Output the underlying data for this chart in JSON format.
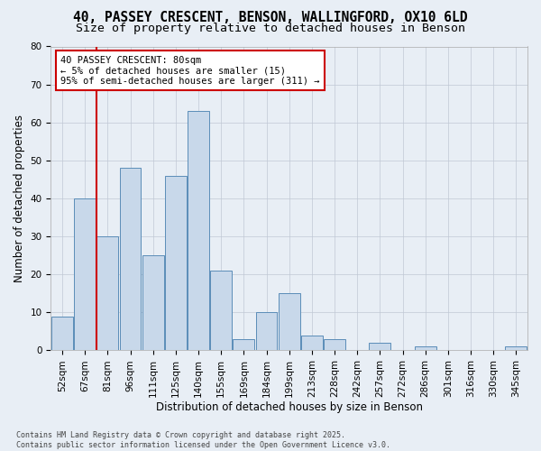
{
  "title1": "40, PASSEY CRESCENT, BENSON, WALLINGFORD, OX10 6LD",
  "title2": "Size of property relative to detached houses in Benson",
  "xlabel": "Distribution of detached houses by size in Benson",
  "ylabel": "Number of detached properties",
  "categories": [
    "52sqm",
    "67sqm",
    "81sqm",
    "96sqm",
    "111sqm",
    "125sqm",
    "140sqm",
    "155sqm",
    "169sqm",
    "184sqm",
    "199sqm",
    "213sqm",
    "228sqm",
    "242sqm",
    "257sqm",
    "272sqm",
    "286sqm",
    "301sqm",
    "316sqm",
    "330sqm",
    "345sqm"
  ],
  "values": [
    9,
    40,
    30,
    48,
    25,
    46,
    63,
    21,
    3,
    10,
    15,
    4,
    3,
    0,
    2,
    0,
    1,
    0,
    0,
    0,
    1
  ],
  "bar_color": "#c8d8ea",
  "bar_edge_color": "#5b8db8",
  "vline_color": "#cc0000",
  "vline_x_index": 2,
  "annotation_line1": "40 PASSEY CRESCENT: 80sqm",
  "annotation_line2": "← 5% of detached houses are smaller (15)",
  "annotation_line3": "95% of semi-detached houses are larger (311) →",
  "annotation_box_facecolor": "#ffffff",
  "annotation_box_edgecolor": "#cc0000",
  "ylim": [
    0,
    80
  ],
  "yticks": [
    0,
    10,
    20,
    30,
    40,
    50,
    60,
    70,
    80
  ],
  "grid_color": "#c0c8d4",
  "bg_color": "#e8eef5",
  "footer1": "Contains HM Land Registry data © Crown copyright and database right 2025.",
  "footer2": "Contains public sector information licensed under the Open Government Licence v3.0.",
  "title1_fontsize": 10.5,
  "title2_fontsize": 9.5,
  "ylabel_fontsize": 8.5,
  "xlabel_fontsize": 8.5,
  "tick_fontsize": 7.5,
  "annot_fontsize": 7.5,
  "footer_fontsize": 6.0
}
